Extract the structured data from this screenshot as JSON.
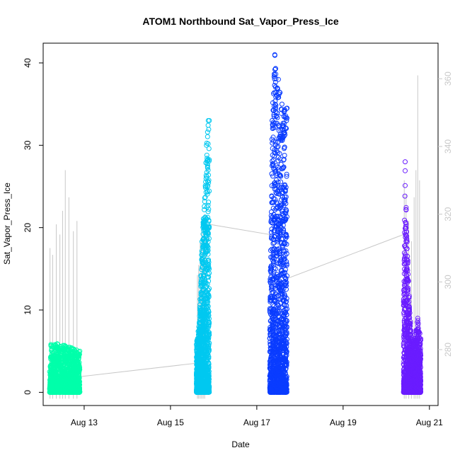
{
  "chart_data": {
    "type": "scatter",
    "title": "ATOM1 Northbound Sat_Vapor_Press_Ice",
    "xlabel": "Date",
    "ylabel": "Sat_Vapor_Press_Ice",
    "x_ticks": [
      {
        "date": "2016-08-13",
        "label": "Aug 13"
      },
      {
        "date": "2016-08-15",
        "label": "Aug 15"
      },
      {
        "date": "2016-08-17",
        "label": "Aug 17"
      },
      {
        "date": "2016-08-19",
        "label": "Aug 19"
      },
      {
        "date": "2016-08-21",
        "label": "Aug 21"
      }
    ],
    "xlim": [
      "2016-08-12T01:12",
      "2016-08-21T04:48"
    ],
    "y_left": {
      "ticks": [
        0,
        10,
        20,
        30,
        40
      ],
      "ylim": [
        -1.6,
        42.4
      ]
    },
    "y_right": {
      "ticks": [
        280,
        300,
        320,
        340,
        360
      ],
      "ylim": [
        263.5,
        370.5
      ],
      "color": "#c8c8c8"
    },
    "grid": false,
    "legend": "none",
    "series": [
      {
        "color": "#00ffaa",
        "x": [
          "2016-08-12T04:48",
          "2016-08-12T21:36"
        ],
        "y_envelope": [
          {
            "x": "2016-08-12T04:48",
            "max": 2.5
          },
          {
            "x": "2016-08-12T05:30",
            "max": 5.8
          },
          {
            "x": "2016-08-12T09:00",
            "max": 5.9
          },
          {
            "x": "2016-08-12T13:00",
            "max": 5.7
          },
          {
            "x": "2016-08-12T17:00",
            "max": 5.4
          },
          {
            "x": "2016-08-12T21:36",
            "max": 5.0
          }
        ]
      },
      {
        "color": "#00c8f0",
        "x": [
          "2016-08-15T14:24",
          "2016-08-15T21:36"
        ],
        "y_envelope": [
          {
            "x": "2016-08-15T14:24",
            "max": 5.8
          },
          {
            "x": "2016-08-15T16:00",
            "max": 8.5
          },
          {
            "x": "2016-08-15T17:30",
            "max": 18.3
          },
          {
            "x": "2016-08-15T19:00",
            "max": 23.6
          },
          {
            "x": "2016-08-15T20:00",
            "max": 30.0
          },
          {
            "x": "2016-08-15T21:00",
            "max": 33.0
          },
          {
            "x": "2016-08-15T21:36",
            "max": 33.0
          }
        ]
      },
      {
        "color": "#0a3cff",
        "x": [
          "2016-08-17T07:12",
          "2016-08-17T16:48"
        ],
        "y_envelope": [
          {
            "x": "2016-08-17T07:12",
            "max": 10.0
          },
          {
            "x": "2016-08-17T08:30",
            "max": 33.0
          },
          {
            "x": "2016-08-17T10:00",
            "max": 41.0
          },
          {
            "x": "2016-08-17T12:00",
            "max": 38.0
          },
          {
            "x": "2016-08-17T14:00",
            "max": 35.0
          },
          {
            "x": "2016-08-17T16:48",
            "max": 34.5
          }
        ]
      },
      {
        "color": "#6a1cff",
        "x": [
          "2016-08-20T09:36",
          "2016-08-20T19:12"
        ],
        "y_envelope": [
          {
            "x": "2016-08-20T09:36",
            "max": 11.0
          },
          {
            "x": "2016-08-20T10:30",
            "max": 28.0
          },
          {
            "x": "2016-08-20T12:00",
            "max": 16.0
          },
          {
            "x": "2016-08-20T14:00",
            "max": 6.0
          },
          {
            "x": "2016-08-20T16:00",
            "max": 7.0
          },
          {
            "x": "2016-08-20T17:30",
            "max": 9.0
          },
          {
            "x": "2016-08-20T19:12",
            "max": 6.5
          }
        ]
      }
    ],
    "right_axis_series": {
      "color": "#c8c8c8",
      "connector": [
        {
          "x": "2016-08-12T21:36",
          "y": 272
        },
        {
          "x": "2016-08-15T14:24",
          "y": 276
        },
        {
          "x": "2016-08-15T21:36",
          "y": 317
        },
        {
          "x": "2016-08-17T07:12",
          "y": 314
        },
        {
          "x": "2016-08-17T16:48",
          "y": 301
        },
        {
          "x": "2016-08-20T09:36",
          "y": 314
        }
      ],
      "spikes": [
        {
          "x": "2016-08-12T05:00",
          "y": 310
        },
        {
          "x": "2016-08-12T06:30",
          "y": 308
        },
        {
          "x": "2016-08-12T08:30",
          "y": 317
        },
        {
          "x": "2016-08-12T10:30",
          "y": 314
        },
        {
          "x": "2016-08-12T12:00",
          "y": 321
        },
        {
          "x": "2016-08-12T13:30",
          "y": 333
        },
        {
          "x": "2016-08-12T15:30",
          "y": 325
        },
        {
          "x": "2016-08-12T18:00",
          "y": 315
        },
        {
          "x": "2016-08-12T20:00",
          "y": 318
        },
        {
          "x": "2016-08-15T15:00",
          "y": 302
        },
        {
          "x": "2016-08-15T15:40",
          "y": 305
        },
        {
          "x": "2016-08-15T16:30",
          "y": 312
        },
        {
          "x": "2016-08-15T17:20",
          "y": 315
        },
        {
          "x": "2016-08-15T18:10",
          "y": 318
        },
        {
          "x": "2016-08-15T19:00",
          "y": 320
        },
        {
          "x": "2016-08-20T10:00",
          "y": 330
        },
        {
          "x": "2016-08-20T11:00",
          "y": 326
        },
        {
          "x": "2016-08-20T12:30",
          "y": 318
        },
        {
          "x": "2016-08-20T14:00",
          "y": 312
        },
        {
          "x": "2016-08-20T15:30",
          "y": 325
        },
        {
          "x": "2016-08-20T16:30",
          "y": 333
        },
        {
          "x": "2016-08-20T17:30",
          "y": 361
        },
        {
          "x": "2016-08-20T18:30",
          "y": 330
        }
      ]
    }
  }
}
